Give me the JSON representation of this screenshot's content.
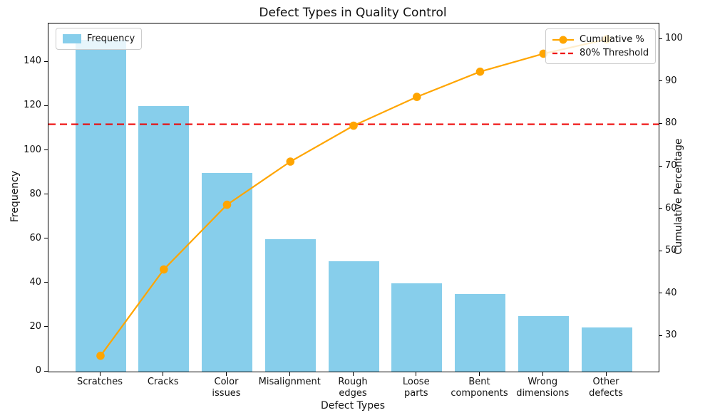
{
  "title": "Defect Types in Quality Control",
  "axes": {
    "x_label": "Defect Types",
    "y_left_label": "Frequency",
    "y_right_label": "Cumulative Percentage"
  },
  "legend": {
    "frequency_label": "Frequency",
    "cumulative_label": "Cumulative %",
    "threshold_label": "80% Threshold"
  },
  "colors": {
    "bar": "#87CEEB",
    "line": "#FFA500",
    "threshold": "#EE0000",
    "spine": "#000000"
  },
  "chart_data": {
    "type": "bar",
    "subtype": "pareto",
    "title": "Defect Types in Quality Control",
    "xlabel": "Defect Types",
    "ylabel_left": "Frequency",
    "ylabel_right": "Cumulative Percentage",
    "categories": [
      "Scratches",
      "Cracks",
      "Color\nissues",
      "Misalignment",
      "Rough\nedges",
      "Loose\nparts",
      "Bent\ncomponents",
      "Wrong\ndimensions",
      "Other\ndefects"
    ],
    "series": [
      {
        "name": "Frequency",
        "type": "bar",
        "axis": "left",
        "color": "#87CEEB",
        "values": [
          150,
          120,
          90,
          60,
          50,
          40,
          35,
          25,
          20
        ]
      },
      {
        "name": "Cumulative %",
        "type": "line",
        "axis": "right",
        "color": "#FFA500",
        "marker": "circle",
        "values": [
          25.42,
          45.76,
          61.02,
          71.19,
          79.66,
          86.44,
          92.37,
          96.61,
          100.0
        ]
      }
    ],
    "threshold_line": {
      "label": "80% Threshold",
      "value": 80,
      "axis": "right",
      "color": "#EE0000",
      "style": "dashed"
    },
    "y_left_ticks": [
      0,
      20,
      40,
      60,
      80,
      100,
      120,
      140
    ],
    "y_right_ticks": [
      30,
      40,
      50,
      60,
      70,
      80,
      90,
      100
    ],
    "ylim_left": [
      0,
      157.5
    ],
    "ylim_right": [
      21.69,
      103.73
    ],
    "grid": false,
    "legend_positions": [
      "upper left",
      "upper right"
    ]
  }
}
